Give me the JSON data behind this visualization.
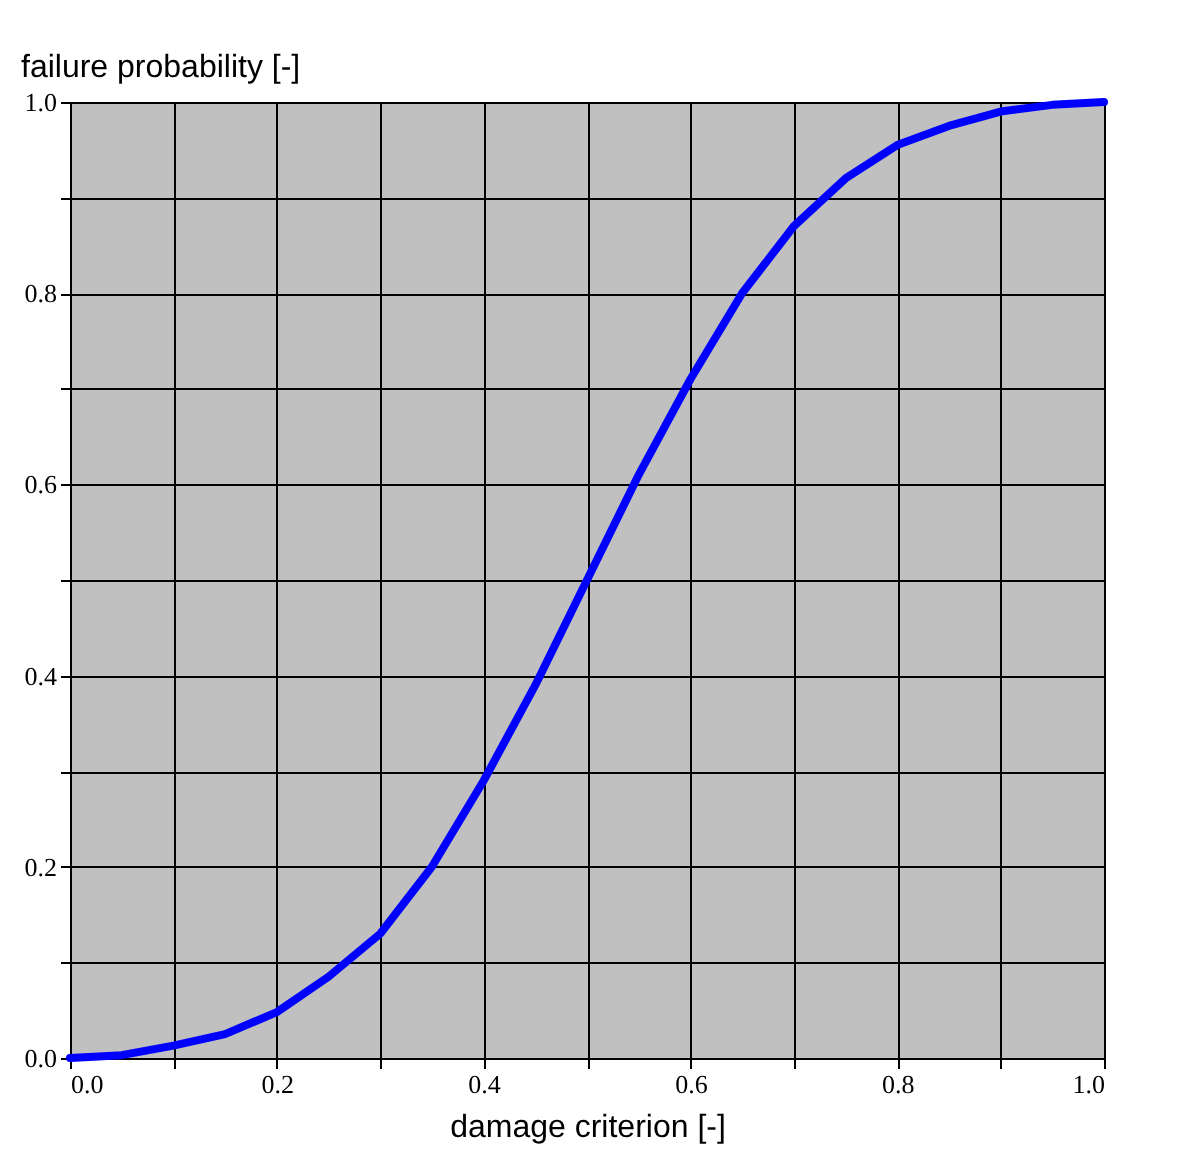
{
  "chart_data": {
    "type": "line",
    "xlabel": "damage criterion [-]",
    "ylabel": "failure probability [-]",
    "x": [
      0,
      0.05,
      0.1,
      0.15,
      0.2,
      0.25,
      0.3,
      0.35,
      0.4,
      0.45,
      0.5,
      0.55,
      0.6,
      0.65,
      0.7,
      0.75,
      0.8,
      0.85,
      0.9,
      0.95,
      1.0
    ],
    "series": [
      {
        "color": "#0000ff",
        "values": [
          0.0,
          0.003,
          0.013,
          0.025,
          0.048,
          0.085,
          0.13,
          0.2,
          0.29,
          0.39,
          0.5,
          0.61,
          0.71,
          0.8,
          0.87,
          0.92,
          0.955,
          0.975,
          0.99,
          0.997,
          1.0
        ]
      }
    ],
    "xlim": [
      0,
      1
    ],
    "ylim": [
      0,
      1
    ],
    "xticks": [
      {
        "value": 0,
        "label": "0.0"
      },
      {
        "value": 0.1,
        "label": null
      },
      0.2,
      {
        "value": 0.3,
        "label": null
      },
      0.4,
      {
        "value": 0.5,
        "label": null
      },
      0.6,
      {
        "value": 0.7,
        "label": null
      },
      0.8,
      {
        "value": 0.9,
        "label": null
      },
      {
        "value": 1,
        "label": "1.0"
      }
    ],
    "yticks": [
      {
        "value": 0,
        "label": "0.0"
      },
      {
        "value": 0.1,
        "label": null
      },
      0.2,
      {
        "value": 0.3,
        "label": null
      },
      0.4,
      {
        "value": 0.5,
        "label": null
      },
      0.6,
      {
        "value": 0.7,
        "label": null
      },
      0.8,
      {
        "value": 0.9,
        "label": null
      },
      {
        "value": 1,
        "label": "1.0"
      }
    ],
    "grid": true,
    "marker": "none",
    "line_style": "solid"
  }
}
